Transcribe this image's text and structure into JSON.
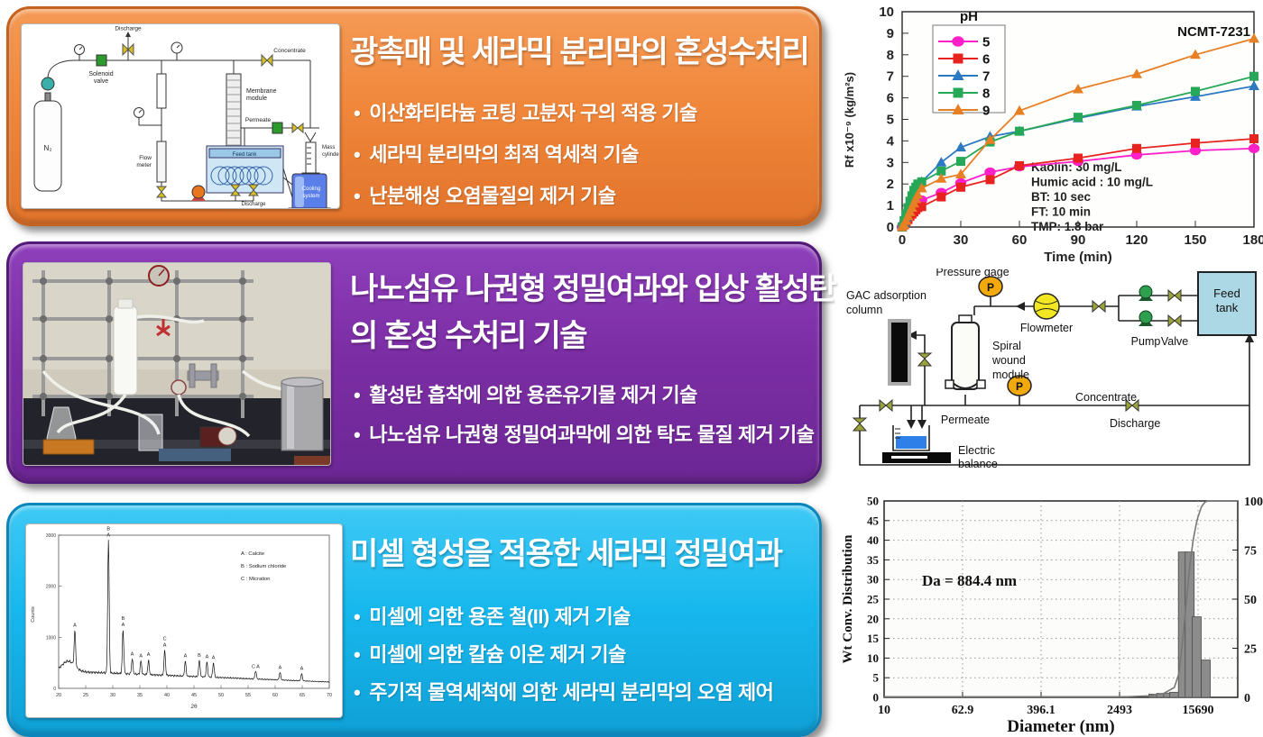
{
  "panels": [
    {
      "title_lines": [
        "광촉매 및 세라믹 분리막의 혼성수처리"
      ],
      "bullets": [
        "이산화티타늄 코팅 고분자 구의 적용 기술",
        "세라믹 분리막의 최적 역세척 기술",
        "난분해성 오염물질의 제거 기술"
      ],
      "colors": {
        "fill_light": "#F59A55",
        "fill": "#F0873B",
        "fill_dark": "#E2742B",
        "border": "#C6621F"
      }
    },
    {
      "title_lines": [
        "나노섬유 나권형 정밀여과와 입상 활성탄",
        "의 혼성 수처리 기술"
      ],
      "bullets": [
        "활성탄 흡착에 의한 용존유기물 제거 기술",
        "나노섬유 나권형 정밀여과막에 의한 탁도 물질 제거 기술"
      ],
      "colors": {
        "fill_light": "#8E3FBB",
        "fill": "#7C2EA5",
        "fill_dark": "#6C2694",
        "border": "#55197A"
      }
    },
    {
      "title_lines": [
        "미셀 형성을 적용한 세라믹 정밀여과"
      ],
      "bullets": [
        "미셀에 의한 용존 철(II) 제거 기술",
        "미셀에 의한 칼슘 이온 제거 기술",
        "주기적 물역세척에 의한 세라믹 분리막의 오염 제어"
      ],
      "colors": {
        "fill_light": "#3FC9F5",
        "fill": "#17B8EE",
        "fill_dark": "#0FA0D6",
        "border": "#0B86BC"
      }
    }
  ],
  "fig1_labels": {
    "discharge_top": "Discharge",
    "solenoid1": "Solenoid",
    "solenoid2": "valve",
    "concentrate": "Concentrate",
    "membrane1": "Membrane",
    "membrane2": "module",
    "permeate": "Permeate",
    "mass1": "Mass",
    "mass2": "cylinder",
    "feed_tank": "Feed tank",
    "cooling1": "Cooling",
    "cooling2": "system",
    "flow1": "Flow",
    "flow2": "meter",
    "discharge_bottom": "Discharge",
    "n2": "N₂"
  },
  "diagram2_labels": {
    "pressure_gage": "Pressure gage",
    "gac1": "GAC adsorption",
    "gac2": "column",
    "flowmeter": "Flowmeter",
    "spiral1": "Spiral",
    "spiral2": "wound",
    "spiral3": "module",
    "pump": "Pump",
    "valve": "Valve",
    "feed1": "Feed",
    "feed2": "tank",
    "permeate": "Permeate",
    "concentrate": "Concentrate",
    "discharge": "Discharge",
    "balance1": "Electric",
    "balance2": "balance",
    "p_letter": "P"
  },
  "chart_data": [
    {
      "id": "fouling",
      "type": "line",
      "sample_label": "NCMT-7231",
      "xlabel": "Time (min)",
      "ylabel": "Rf x10⁻⁹ (kg/m²s)",
      "xlim": [
        0,
        180
      ],
      "ylim": [
        0,
        10
      ],
      "xticks": [
        0,
        30,
        60,
        90,
        120,
        150,
        180
      ],
      "ytick_step": 1,
      "legend_title": "pH",
      "legend_position": "top-left",
      "grid": false,
      "x": [
        0,
        1,
        2,
        3,
        4,
        5,
        6,
        7,
        8,
        10,
        20,
        30,
        45,
        60,
        90,
        120,
        150,
        180
      ],
      "series": [
        {
          "name": "5",
          "color": "#FF1FC8",
          "marker": "circle",
          "values": [
            0,
            0.15,
            0.3,
            0.45,
            0.6,
            0.75,
            0.9,
            1.0,
            1.1,
            1.25,
            1.6,
            2.05,
            2.55,
            2.8,
            3.05,
            3.35,
            3.55,
            3.65
          ]
        },
        {
          "name": "6",
          "color": "#E8231F",
          "marker": "square",
          "values": [
            0,
            0.1,
            0.25,
            0.35,
            0.5,
            0.6,
            0.7,
            0.8,
            0.9,
            0.95,
            1.4,
            1.85,
            2.2,
            2.85,
            3.2,
            3.65,
            3.9,
            4.1
          ]
        },
        {
          "name": "7",
          "color": "#2B79C2",
          "marker": "triangle",
          "values": [
            0,
            0.2,
            0.45,
            0.7,
            0.95,
            1.2,
            1.45,
            1.65,
            1.85,
            2.1,
            3.0,
            3.7,
            4.2,
            4.45,
            5.05,
            5.6,
            6.05,
            6.55
          ]
        },
        {
          "name": "8",
          "color": "#27A858",
          "marker": "square",
          "values": [
            0,
            0.3,
            0.6,
            0.9,
            1.2,
            1.45,
            1.7,
            1.85,
            2.0,
            2.1,
            2.6,
            3.05,
            3.95,
            4.45,
            5.1,
            5.65,
            6.3,
            7.0
          ]
        },
        {
          "name": "9",
          "color": "#E77F25",
          "marker": "triangle",
          "values": [
            0,
            0.1,
            0.3,
            0.5,
            0.7,
            0.9,
            1.1,
            1.3,
            1.5,
            1.8,
            2.25,
            2.45,
            4.05,
            5.4,
            6.4,
            7.1,
            8.0,
            8.75
          ]
        }
      ],
      "annotations": [
        "Kaolin: 30 mg/L",
        "Humic acid : 10 mg/L",
        "BT: 10 sec",
        "FT: 10 min",
        "TMP: 1.8 bar"
      ]
    },
    {
      "id": "xrd",
      "type": "line",
      "xlabel": "2θ",
      "ylabel": "Counts",
      "xlim": [
        20,
        70
      ],
      "ylim": [
        0,
        3000
      ],
      "xtick_step": 5,
      "yticks": [
        0,
        1000,
        2000,
        3000
      ],
      "legend": [
        "A : Calcite",
        "B : Sodium chloride",
        "C : Micration"
      ],
      "peaks": [
        [
          23,
          700,
          "A"
        ],
        [
          29.2,
          2600,
          "C|B|A"
        ],
        [
          31.9,
          850,
          "B|A"
        ],
        [
          33.6,
          300,
          "A"
        ],
        [
          35.2,
          260,
          "A"
        ],
        [
          36.6,
          280,
          "A"
        ],
        [
          39.6,
          480,
          "C|A"
        ],
        [
          43.4,
          300,
          "A"
        ],
        [
          46,
          320,
          "B"
        ],
        [
          47.4,
          300,
          "A"
        ],
        [
          48.6,
          290,
          "A"
        ],
        [
          56.4,
          160,
          "C A"
        ],
        [
          60.9,
          150,
          "A"
        ],
        [
          64.9,
          140,
          "A"
        ]
      ]
    },
    {
      "id": "psd",
      "type": "bar",
      "xlabel": "Diameter (nm)",
      "ylabel_left": "Wt Conv. Distribution",
      "annotation": "Da = 884.4 nm",
      "x_scale": "log",
      "xticks": [
        10,
        62.9,
        396.1,
        2493,
        15690
      ],
      "xlim": [
        10,
        39800
      ],
      "ylim_left": [
        0,
        50
      ],
      "ytick_step_left": 5,
      "ylim_right": [
        0,
        100
      ],
      "yticks_right": [
        0,
        25,
        50,
        75,
        100
      ],
      "grid": "dotted",
      "bars": [
        [
          5500,
          0.8
        ],
        [
          6600,
          1.0
        ],
        [
          7800,
          1.1
        ],
        [
          9000,
          1.3
        ],
        [
          11000,
          37
        ],
        [
          12900,
          37
        ],
        [
          15200,
          20.5
        ],
        [
          18800,
          9.5
        ]
      ],
      "cumulative": [
        [
          10,
          0.3
        ],
        [
          3000,
          0.3
        ],
        [
          5000,
          0.8
        ],
        [
          7000,
          2
        ],
        [
          9000,
          5
        ],
        [
          10000,
          12
        ],
        [
          11000,
          30
        ],
        [
          12000,
          50
        ],
        [
          13000,
          68
        ],
        [
          14000,
          80
        ],
        [
          15000,
          88
        ],
        [
          15690,
          92
        ],
        [
          17000,
          97
        ],
        [
          18500,
          99.5
        ],
        [
          20000,
          100
        ],
        [
          39800,
          100
        ]
      ]
    }
  ],
  "colors": {
    "bar_fill": "#8C8C8C",
    "bar_edge": "#4A4A4A",
    "cumulative_line": "#777777",
    "gauge_orange": "#F2A90B",
    "flowmeter_yellow": "#F3E723",
    "pump_green": "#2E9E4F",
    "valve_olive": "#9AA23A",
    "feed_tank_blue": "#ACD8E5",
    "water_blue": "#2E7FE8"
  }
}
